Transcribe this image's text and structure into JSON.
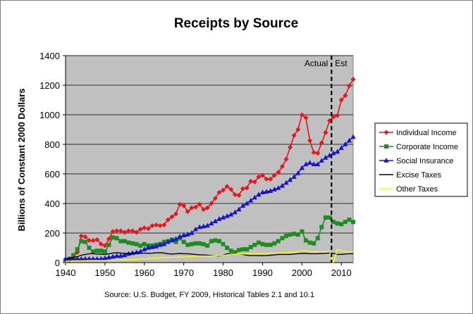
{
  "chart_data": {
    "type": "line",
    "title": "Receipts by Source",
    "xlabel": "",
    "ylabel": "Billions of Constant 2000 Dollars",
    "source": "Source: U.S. Budget, FY 2009, Historical Tables 2.1 and 10.1",
    "xlim": [
      1940,
      2013
    ],
    "ylim": [
      0,
      1400
    ],
    "x_ticks": [
      1940,
      1950,
      1960,
      1970,
      1980,
      1990,
      2000,
      2010
    ],
    "y_ticks": [
      0,
      200,
      400,
      600,
      800,
      1000,
      1200,
      1400
    ],
    "grid": "horizontal",
    "plot_background": "#c0c0c0",
    "legend_position": "right",
    "divider": {
      "x": 2007.5,
      "left_label": "Actual",
      "right_label": "Est"
    },
    "series": [
      {
        "name": "Individual Income",
        "color": "#e8141e",
        "marker": "diamond",
        "x": [
          1940,
          1941,
          1942,
          1943,
          1944,
          1945,
          1946,
          1947,
          1948,
          1949,
          1950,
          1951,
          1952,
          1953,
          1954,
          1955,
          1956,
          1957,
          1958,
          1959,
          1960,
          1961,
          1962,
          1963,
          1964,
          1965,
          1966,
          1967,
          1968,
          1969,
          1970,
          1971,
          1972,
          1973,
          1974,
          1975,
          1976,
          1977,
          1978,
          1979,
          1980,
          1981,
          1982,
          1983,
          1984,
          1985,
          1986,
          1987,
          1988,
          1989,
          1990,
          1991,
          1992,
          1993,
          1994,
          1995,
          1996,
          1997,
          1998,
          1999,
          2000,
          2001,
          2002,
          2003,
          2004,
          2005,
          2006,
          2007,
          2008,
          2009,
          2010,
          2011,
          2012,
          2013
        ],
        "values": [
          10,
          14,
          35,
          70,
          180,
          175,
          150,
          150,
          155,
          125,
          115,
          160,
          210,
          215,
          215,
          205,
          215,
          215,
          205,
          225,
          235,
          230,
          250,
          255,
          250,
          255,
          290,
          310,
          330,
          395,
          385,
          345,
          370,
          375,
          395,
          360,
          370,
          400,
          435,
          475,
          490,
          515,
          495,
          460,
          455,
          500,
          505,
          550,
          545,
          580,
          590,
          565,
          565,
          590,
          610,
          650,
          700,
          780,
          860,
          900,
          1000,
          980,
          825,
          745,
          740,
          810,
          880,
          960,
          985,
          995,
          1100,
          1130,
          1195,
          1240
        ]
      },
      {
        "name": "Corporate Income",
        "color": "#1e8c1e",
        "marker": "square",
        "x": [
          1940,
          1941,
          1942,
          1943,
          1944,
          1945,
          1946,
          1947,
          1948,
          1949,
          1950,
          1951,
          1952,
          1953,
          1954,
          1955,
          1956,
          1957,
          1958,
          1959,
          1960,
          1961,
          1962,
          1963,
          1964,
          1965,
          1966,
          1967,
          1968,
          1969,
          1970,
          1971,
          1972,
          1973,
          1974,
          1975,
          1976,
          1977,
          1978,
          1979,
          1980,
          1981,
          1982,
          1983,
          1984,
          1985,
          1986,
          1987,
          1988,
          1989,
          1990,
          1991,
          1992,
          1993,
          1994,
          1995,
          1996,
          1997,
          1998,
          1999,
          2000,
          2001,
          2002,
          2003,
          2004,
          2005,
          2006,
          2007,
          2008,
          2009,
          2010,
          2011,
          2012,
          2013
        ],
        "values": [
          15,
          25,
          50,
          90,
          145,
          140,
          100,
          75,
          80,
          80,
          75,
          120,
          170,
          165,
          145,
          145,
          135,
          130,
          125,
          115,
          125,
          115,
          115,
          120,
          125,
          140,
          145,
          155,
          140,
          165,
          140,
          120,
          125,
          130,
          130,
          125,
          115,
          145,
          150,
          145,
          125,
          100,
          80,
          70,
          85,
          90,
          90,
          105,
          120,
          135,
          125,
          120,
          120,
          130,
          145,
          165,
          180,
          190,
          195,
          190,
          210,
          150,
          135,
          130,
          165,
          240,
          305,
          305,
          275,
          265,
          260,
          275,
          290,
          275
        ]
      },
      {
        "name": "Social Insurance",
        "color": "#1414d2",
        "marker": "triangle",
        "x": [
          1940,
          1941,
          1942,
          1943,
          1944,
          1945,
          1946,
          1947,
          1948,
          1949,
          1950,
          1951,
          1952,
          1953,
          1954,
          1955,
          1956,
          1957,
          1958,
          1959,
          1960,
          1961,
          1962,
          1963,
          1964,
          1965,
          1966,
          1967,
          1968,
          1969,
          1970,
          1971,
          1972,
          1973,
          1974,
          1975,
          1976,
          1977,
          1978,
          1979,
          1980,
          1981,
          1982,
          1983,
          1984,
          1985,
          1986,
          1987,
          1988,
          1989,
          1990,
          1991,
          1992,
          1993,
          1994,
          1995,
          1996,
          1997,
          1998,
          1999,
          2000,
          2001,
          2002,
          2003,
          2004,
          2005,
          2006,
          2007,
          2008,
          2009,
          2010,
          2011,
          2012,
          2013
        ],
        "values": [
          25,
          25,
          25,
          25,
          25,
          25,
          25,
          25,
          25,
          25,
          30,
          35,
          40,
          45,
          45,
          50,
          60,
          65,
          70,
          75,
          90,
          100,
          105,
          110,
          120,
          125,
          140,
          150,
          160,
          175,
          185,
          190,
          200,
          225,
          240,
          245,
          250,
          265,
          280,
          295,
          305,
          315,
          325,
          340,
          360,
          385,
          400,
          420,
          440,
          460,
          475,
          480,
          485,
          495,
          505,
          520,
          540,
          560,
          580,
          605,
          640,
          665,
          675,
          665,
          665,
          690,
          710,
          725,
          740,
          750,
          775,
          800,
          825,
          850
        ]
      },
      {
        "name": "Excise Taxes",
        "color": "#000000",
        "marker": "none",
        "x": [
          1940,
          1941,
          1942,
          1943,
          1944,
          1945,
          1946,
          1947,
          1948,
          1949,
          1950,
          1951,
          1952,
          1953,
          1954,
          1955,
          1956,
          1957,
          1958,
          1959,
          1960,
          1961,
          1962,
          1963,
          1964,
          1965,
          1966,
          1967,
          1968,
          1969,
          1970,
          1971,
          1972,
          1973,
          1974,
          1975,
          1976,
          1977,
          1978,
          1979,
          1980,
          1981,
          1982,
          1983,
          1984,
          1985,
          1986,
          1987,
          1988,
          1989,
          1990,
          1991,
          1992,
          1993,
          1994,
          1995,
          1996,
          1997,
          1998,
          1999,
          2000,
          2001,
          2002,
          2003,
          2004,
          2005,
          2006,
          2007,
          2008,
          2009,
          2010,
          2011,
          2012,
          2013
        ],
        "values": [
          25,
          30,
          35,
          40,
          50,
          55,
          60,
          60,
          58,
          57,
          55,
          60,
          65,
          67,
          65,
          62,
          63,
          65,
          62,
          63,
          65,
          63,
          64,
          66,
          67,
          65,
          60,
          58,
          60,
          62,
          60,
          60,
          58,
          55,
          53,
          52,
          50,
          48,
          46,
          45,
          50,
          60,
          58,
          60,
          58,
          55,
          50,
          48,
          48,
          47,
          47,
          48,
          50,
          52,
          55,
          55,
          55,
          55,
          58,
          60,
          62,
          62,
          60,
          60,
          60,
          62,
          63,
          65,
          63,
          55,
          55,
          58,
          60,
          60
        ]
      },
      {
        "name": "Other Taxes",
        "color": "#ffff00",
        "marker": "none",
        "x": [
          1940,
          1941,
          1942,
          1943,
          1944,
          1945,
          1946,
          1947,
          1948,
          1949,
          1950,
          1951,
          1952,
          1953,
          1954,
          1955,
          1956,
          1957,
          1958,
          1959,
          1960,
          1961,
          1962,
          1963,
          1964,
          1965,
          1966,
          1967,
          1968,
          1969,
          1970,
          1971,
          1972,
          1973,
          1974,
          1975,
          1976,
          1977,
          1978,
          1979,
          1980,
          1981,
          1982,
          1983,
          1984,
          1985,
          1986,
          1987,
          1988,
          1989,
          1990,
          1991,
          1992,
          1993,
          1994,
          1995,
          1996,
          1997,
          1998,
          1999,
          2000,
          2001,
          2002,
          2003,
          2004,
          2005,
          2006,
          2007,
          2008,
          2009,
          2010,
          2011,
          2012,
          2013
        ],
        "values": [
          10,
          10,
          12,
          12,
          12,
          13,
          14,
          14,
          14,
          14,
          15,
          15,
          17,
          18,
          18,
          20,
          20,
          22,
          22,
          24,
          25,
          27,
          28,
          30,
          32,
          35,
          35,
          36,
          37,
          38,
          38,
          40,
          40,
          42,
          42,
          45,
          45,
          45,
          46,
          48,
          48,
          52,
          55,
          58,
          58,
          58,
          58,
          60,
          60,
          62,
          60,
          62,
          64,
          65,
          66,
          67,
          68,
          70,
          72,
          75,
          82,
          80,
          77,
          73,
          75,
          72,
          75,
          75,
          0,
          90,
          82,
          75,
          72,
          75
        ]
      }
    ]
  }
}
